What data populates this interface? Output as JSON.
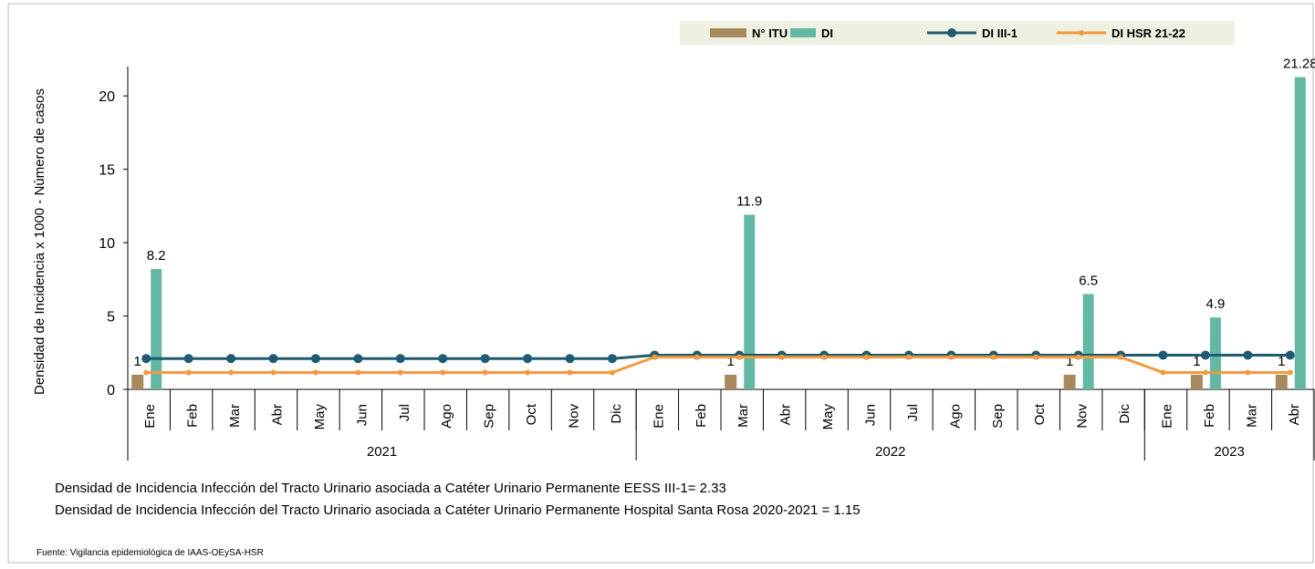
{
  "chart_data": {
    "type": "bar_line",
    "category_groups": [
      {
        "name": "2021",
        "categories": [
          "Ene",
          "Feb",
          "Mar",
          "Abr",
          "May",
          "Jun",
          "Jul",
          "Ago",
          "Sep",
          "Oct",
          "Nov",
          "Dic"
        ]
      },
      {
        "name": "2022",
        "categories": [
          "Ene",
          "Feb",
          "Mar",
          "Abr",
          "May",
          "Jun",
          "Jul",
          "Ago",
          "Sep",
          "Oct",
          "Nov",
          "Dic"
        ]
      },
      {
        "name": "2023",
        "categories": [
          "Ene",
          "Feb",
          "Mar",
          "Abr"
        ]
      }
    ],
    "y_label": "Densidad de Incidencia x 1000 - Número de casos",
    "ylim": [
      0,
      22
    ],
    "yticks": [
      0,
      5,
      10,
      15,
      20
    ],
    "series": [
      {
        "name": "N° ITU",
        "kind": "bar",
        "color": "#a88a5c",
        "values": [
          1,
          null,
          null,
          null,
          null,
          null,
          null,
          null,
          null,
          null,
          null,
          null,
          null,
          null,
          1,
          null,
          null,
          null,
          null,
          null,
          null,
          null,
          1,
          null,
          null,
          1,
          null,
          1
        ]
      },
      {
        "name": "DI",
        "kind": "bar",
        "color": "#62b8a2",
        "values": [
          8.2,
          null,
          null,
          null,
          null,
          null,
          null,
          null,
          null,
          null,
          null,
          null,
          null,
          null,
          11.9,
          null,
          null,
          null,
          null,
          null,
          null,
          null,
          6.5,
          null,
          null,
          4.9,
          null,
          21.28
        ]
      },
      {
        "name": "DI III-1",
        "kind": "line",
        "color": "#1f5b72",
        "values": [
          2.1,
          2.1,
          2.1,
          2.1,
          2.1,
          2.1,
          2.1,
          2.1,
          2.1,
          2.1,
          2.1,
          2.1,
          2.33,
          2.33,
          2.33,
          2.33,
          2.33,
          2.33,
          2.33,
          2.33,
          2.33,
          2.33,
          2.33,
          2.33,
          2.33,
          2.33,
          2.33,
          2.33
        ]
      },
      {
        "name": "DI HSR 21-22",
        "kind": "line",
        "color": "#f39a3e",
        "values": [
          1.15,
          1.15,
          1.15,
          1.15,
          1.15,
          1.15,
          1.15,
          1.15,
          1.15,
          1.15,
          1.15,
          1.15,
          2.2,
          2.2,
          2.2,
          2.2,
          2.2,
          2.2,
          2.2,
          2.2,
          2.2,
          2.2,
          2.2,
          2.2,
          1.15,
          1.15,
          1.15,
          1.15
        ]
      }
    ],
    "notes": [
      "Densidad de Incidencia Infección del  Tracto Urinario asociada a Catéter Urinario Permanente  EESS III-1= 2.33",
      "Densidad de Incidencia Infección del  Tracto Urinario asociada a Catéter Urinario Permanente  Hospital Santa Rosa 2020-2021  = 1.15"
    ],
    "source": "Fuente: Vigilancia epidemiológica de IAAS-OEySA-HSR"
  }
}
